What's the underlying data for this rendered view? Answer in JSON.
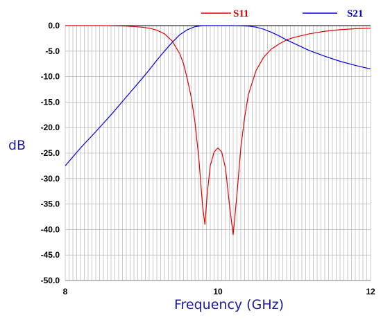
{
  "chart_data": {
    "type": "line",
    "xlabel": "Frequency (GHz)",
    "ylabel": "dB",
    "xlim": [
      8,
      12
    ],
    "ylim": [
      -50,
      0
    ],
    "x_ticks": [
      "8",
      "10",
      "12"
    ],
    "y_ticks": [
      "0.0",
      "-5.0",
      "-10.0",
      "-15.0",
      "-20.0",
      "-25.0",
      "-30.0",
      "-35.0",
      "-40.0",
      "-45.0",
      "-50.0"
    ],
    "grid": true,
    "legend_position": "top-right",
    "series": [
      {
        "name": "S11",
        "color": "#e00000",
        "x": [
          8.0,
          8.5,
          8.8,
          9.0,
          9.1,
          9.2,
          9.3,
          9.4,
          9.5,
          9.55,
          9.6,
          9.65,
          9.7,
          9.75,
          9.8,
          9.83,
          9.86,
          9.9,
          9.95,
          10.0,
          10.05,
          10.1,
          10.15,
          10.2,
          10.25,
          10.3,
          10.35,
          10.4,
          10.5,
          10.6,
          10.7,
          10.8,
          10.9,
          11.0,
          11.2,
          11.4,
          11.6,
          11.8,
          12.0
        ],
        "values": [
          0,
          0,
          -0.1,
          -0.3,
          -0.5,
          -0.9,
          -1.6,
          -3.0,
          -5.5,
          -7.5,
          -10.5,
          -14.0,
          -19.0,
          -26.0,
          -35.5,
          -39.0,
          -33.0,
          -27.5,
          -24.8,
          -24.0,
          -24.8,
          -28.0,
          -35.0,
          -41.0,
          -33.0,
          -24.0,
          -18.0,
          -13.5,
          -8.8,
          -6.2,
          -4.6,
          -3.6,
          -2.8,
          -2.3,
          -1.6,
          -1.1,
          -0.8,
          -0.6,
          -0.5
        ]
      },
      {
        "name": "S21",
        "color": "#0000e0",
        "x": [
          8.0,
          8.2,
          8.4,
          8.6,
          8.8,
          9.0,
          9.1,
          9.2,
          9.3,
          9.4,
          9.5,
          9.6,
          9.7,
          9.8,
          9.9,
          10.0,
          10.2,
          10.4,
          10.5,
          10.6,
          10.7,
          10.8,
          10.9,
          11.0,
          11.2,
          11.4,
          11.6,
          11.8,
          12.0
        ],
        "values": [
          -27.5,
          -24.0,
          -20.8,
          -17.5,
          -14.0,
          -10.5,
          -8.7,
          -6.8,
          -5.0,
          -3.3,
          -1.8,
          -0.8,
          -0.2,
          0,
          0,
          0,
          0,
          -0.1,
          -0.3,
          -0.7,
          -1.3,
          -2.0,
          -2.8,
          -3.5,
          -4.9,
          -6.0,
          -7.0,
          -7.8,
          -8.5
        ]
      }
    ]
  }
}
